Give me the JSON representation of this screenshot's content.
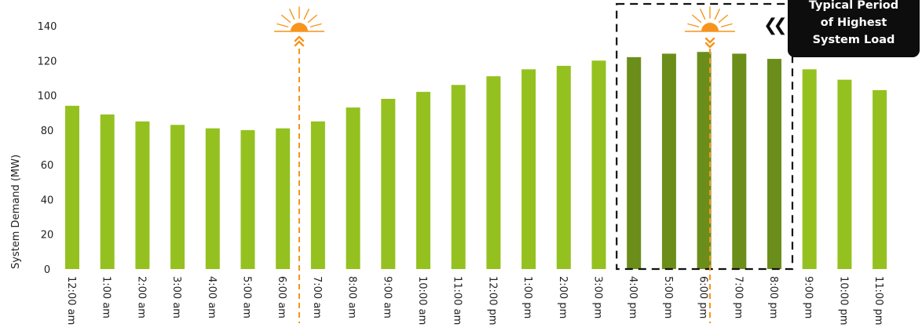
{
  "chart_data": {
    "type": "bar",
    "ylabel": "System Demand (MW)",
    "ylim": [
      0,
      140
    ],
    "yticks": [
      0,
      20,
      40,
      60,
      80,
      100,
      120,
      140
    ],
    "categories": [
      "12:00 am",
      "1:00 am",
      "2:00 am",
      "3:00 am",
      "4:00 am",
      "5:00 am",
      "6:00 am",
      "7:00 am",
      "8:00 am",
      "9:00 am",
      "10:00 am",
      "11:00 am",
      "12:00 pm",
      "1:00 pm",
      "2:00 pm",
      "3:00 pm",
      "4:00 pm",
      "5:00 pm",
      "6:00 pm",
      "7:00 pm",
      "8:00 pm",
      "9:00 pm",
      "10:00 pm",
      "11:00 pm"
    ],
    "values": [
      94,
      89,
      85,
      83,
      81,
      80,
      81,
      85,
      93,
      98,
      102,
      106,
      111,
      115,
      117,
      120,
      122,
      124,
      125,
      124,
      121,
      115,
      109,
      103
    ],
    "highlight_range": [
      "4:00 pm",
      "8:00 pm"
    ],
    "annotation": {
      "lines": [
        "Typical Period",
        "of Highest",
        "System Load"
      ]
    },
    "sun_markers": [
      "sunrise",
      "sunset"
    ],
    "colors": {
      "bar": "#94c11f",
      "bar_highlight": "#6b8e1a",
      "sun": "#f7941d",
      "callout": "#0d0d0d"
    }
  }
}
